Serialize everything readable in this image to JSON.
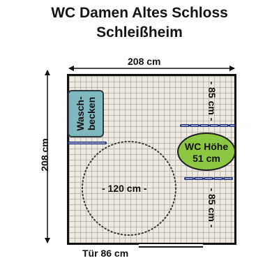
{
  "title": {
    "line1": "WC Damen Altes Schloss",
    "line2": "Schleißheim"
  },
  "dimensions": {
    "width_label": "208 cm",
    "depth_label": "208 cm",
    "wc_clearance_above": "- 85 cm -",
    "wc_clearance_below": "- 85 cm -",
    "turning_circle": "- 120 cm -",
    "door": "Tür 86 cm"
  },
  "fixtures": {
    "sink_line1": "Wasch-",
    "sink_line2": "becken",
    "wc_line1": "WC Höhe",
    "wc_line2": "51 cm"
  },
  "colors": {
    "sink": "#7fb8bd",
    "wc": "#8dc641",
    "grab_bar": "#1c2a78",
    "floor_tile": "#eeeae2"
  }
}
